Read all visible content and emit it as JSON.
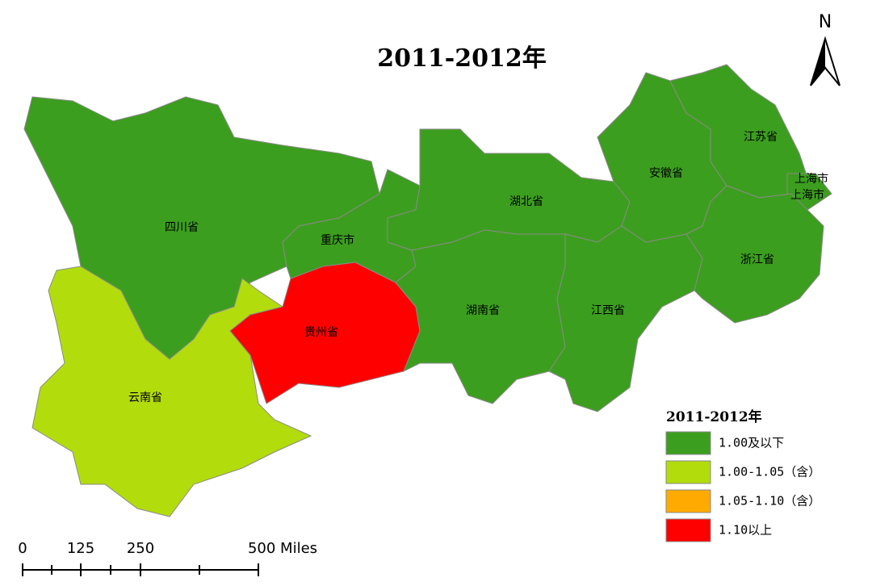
{
  "title": "2011-2012年",
  "north": "N",
  "provinces": [
    {
      "label": "四川省",
      "class": 0
    },
    {
      "label": "云南省",
      "class": 1
    },
    {
      "label": "贵州省",
      "class": 3
    },
    {
      "label": "重庆市",
      "class": 0
    },
    {
      "label": "湖北省",
      "class": 0
    },
    {
      "label": "湖南省",
      "class": 0
    },
    {
      "label": "江西省",
      "class": 0
    },
    {
      "label": "安徽省",
      "class": 0
    },
    {
      "label": "江苏省",
      "class": 0
    },
    {
      "label": "上海市",
      "class": 0
    },
    {
      "label": "浙江省",
      "class": 0
    }
  ],
  "legend": {
    "title": "2011-2012年",
    "items": [
      {
        "label": "1.00及以下",
        "color": "#3c9e1e"
      },
      {
        "label": "1.00-1.05（含）",
        "color": "#b3dc0c"
      },
      {
        "label": "1.05-1.10（含）",
        "color": "#ffaa00"
      },
      {
        "label": "1.10以上",
        "color": "#ff0000"
      }
    ]
  },
  "scale": {
    "labels": [
      "0",
      "125",
      "250",
      "500 Miles"
    ]
  }
}
